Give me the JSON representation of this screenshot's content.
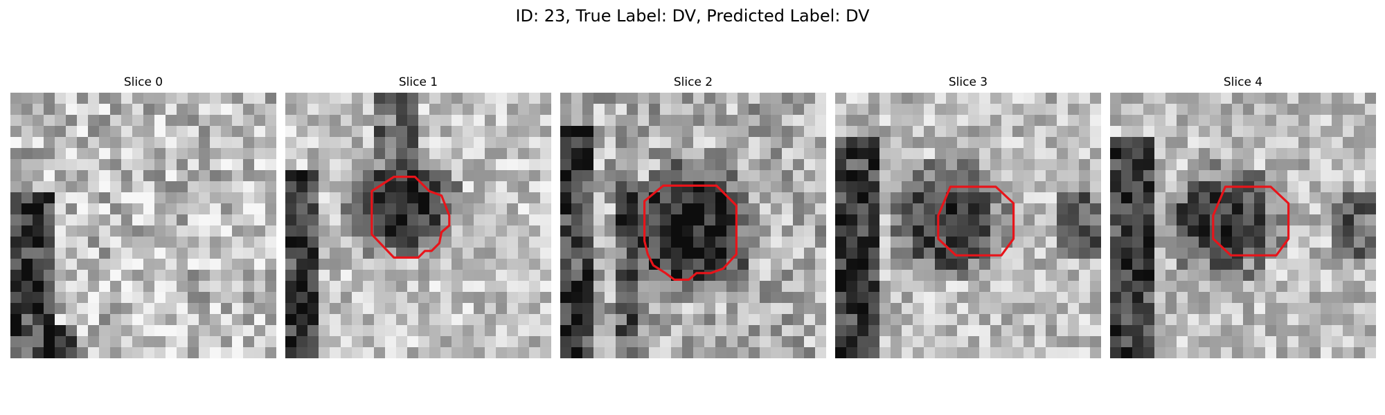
{
  "figure": {
    "title": "ID: 23, True Label: DV, Predicted Label: DV"
  },
  "panels": [
    {
      "label": "Slice 0",
      "contour": false
    },
    {
      "label": "Slice 1",
      "contour": true
    },
    {
      "label": "Slice 2",
      "contour": true
    },
    {
      "label": "Slice 3",
      "contour": true
    },
    {
      "label": "Slice 4",
      "contour": true
    }
  ],
  "colors": {
    "contour": "#e8141a",
    "colormap": "gray"
  }
}
